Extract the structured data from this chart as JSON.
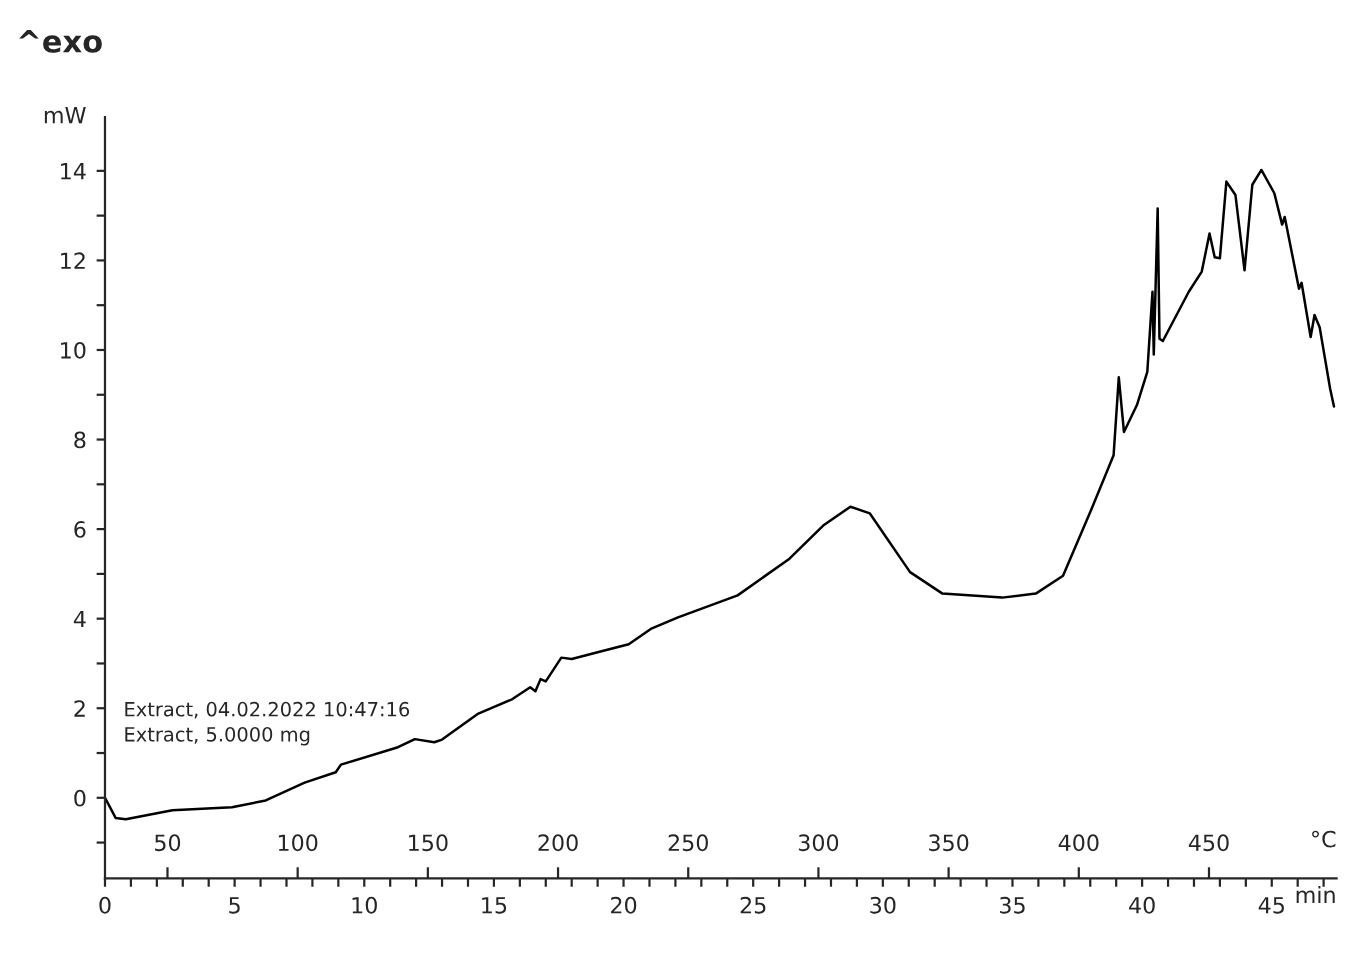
{
  "chart_data": {
    "type": "line",
    "title": "^exo",
    "xlabel": "min",
    "x2label": "°C",
    "ylabel": "mW",
    "annotations": [
      "Extract, 04.02.2022 10:47:16",
      "Extract, 5.0000 mg"
    ],
    "xlim": [
      0,
      47.5
    ],
    "x2lim": [
      26,
      499
    ],
    "ylim": [
      -1.8,
      15.2
    ],
    "xticks": [
      0,
      {
        "value": 1,
        "label": null
      },
      {
        "value": 2,
        "label": null
      },
      {
        "value": 3,
        "label": null
      },
      {
        "value": 4,
        "label": null
      },
      5,
      {
        "value": 6,
        "label": null
      },
      {
        "value": 7,
        "label": null
      },
      {
        "value": 8,
        "label": null
      },
      {
        "value": 9,
        "label": null
      },
      10,
      {
        "value": 11,
        "label": null
      },
      {
        "value": 12,
        "label": null
      },
      {
        "value": 13,
        "label": null
      },
      {
        "value": 14,
        "label": null
      },
      15,
      {
        "value": 16,
        "label": null
      },
      {
        "value": 17,
        "label": null
      },
      {
        "value": 18,
        "label": null
      },
      {
        "value": 19,
        "label": null
      },
      20,
      {
        "value": 21,
        "label": null
      },
      {
        "value": 22,
        "label": null
      },
      {
        "value": 23,
        "label": null
      },
      {
        "value": 24,
        "label": null
      },
      25,
      {
        "value": 26,
        "label": null
      },
      {
        "value": 27,
        "label": null
      },
      {
        "value": 28,
        "label": null
      },
      {
        "value": 29,
        "label": null
      },
      30,
      {
        "value": 31,
        "label": null
      },
      {
        "value": 32,
        "label": null
      },
      {
        "value": 33,
        "label": null
      },
      {
        "value": 34,
        "label": null
      },
      35,
      {
        "value": 36,
        "label": null
      },
      {
        "value": 37,
        "label": null
      },
      {
        "value": 38,
        "label": null
      },
      {
        "value": 39,
        "label": null
      },
      40,
      {
        "value": 41,
        "label": null
      },
      {
        "value": 42,
        "label": null
      },
      {
        "value": 43,
        "label": null
      },
      {
        "value": 44,
        "label": null
      },
      45,
      {
        "value": 46,
        "label": null
      },
      {
        "value": 47,
        "label": null
      }
    ],
    "x2ticks": [
      50,
      100,
      150,
      200,
      250,
      300,
      350,
      400,
      450
    ],
    "yticks": [
      {
        "value": -1,
        "label": null
      },
      0,
      {
        "value": 1,
        "label": null
      },
      2,
      {
        "value": 3,
        "label": null
      },
      4,
      {
        "value": 5,
        "label": null
      },
      6,
      {
        "value": 7,
        "label": null
      },
      8,
      {
        "value": 9,
        "label": null
      },
      10,
      {
        "value": 11,
        "label": null
      },
      12,
      {
        "value": 13,
        "label": null
      },
      14
    ],
    "grid": false,
    "legend": false,
    "marker": "none",
    "line_style": "solid",
    "series": [
      {
        "color": "#000000",
        "x": [
          0,
          0.41,
          0.8,
          2.6,
          4.9,
          6.2,
          7.7,
          8.9,
          9.1,
          11.3,
          11.95,
          12.7,
          13.0,
          14.4,
          15.7,
          16.4,
          16.6,
          16.8,
          17.0,
          17.6,
          18.0,
          19.0,
          20.2,
          21.05,
          22.1,
          24.4,
          26.4,
          27.7,
          28.75,
          29.5,
          31.05,
          32.3,
          34.6,
          35.9,
          36.95,
          38.0,
          38.9,
          39.1,
          39.3,
          39.8,
          40.2,
          40.4,
          40.45,
          40.6,
          40.67,
          40.8,
          41.8,
          42.3,
          42.6,
          42.8,
          43.0,
          43.25,
          43.6,
          43.95,
          44.25,
          44.6,
          45.1,
          45.4,
          45.5,
          46.05,
          46.15,
          46.5,
          46.65,
          46.85,
          47.25,
          47.4
        ],
        "values": [
          0,
          -0.45,
          -0.48,
          -0.28,
          -0.21,
          -0.06,
          0.34,
          0.57,
          0.74,
          1.13,
          1.31,
          1.24,
          1.3,
          1.88,
          2.2,
          2.47,
          2.38,
          2.65,
          2.6,
          3.13,
          3.1,
          3.25,
          3.43,
          3.77,
          4.03,
          4.52,
          5.34,
          6.08,
          6.5,
          6.35,
          5.04,
          4.56,
          4.47,
          4.56,
          4.96,
          6.38,
          7.65,
          9.39,
          8.17,
          8.77,
          9.51,
          11.3,
          9.9,
          13.16,
          10.25,
          10.2,
          11.3,
          11.75,
          12.6,
          12.07,
          12.05,
          13.76,
          13.46,
          11.78,
          13.69,
          14.02,
          13.5,
          12.8,
          12.97,
          11.37,
          11.5,
          10.29,
          10.78,
          10.5,
          9.14,
          8.74
        ]
      }
    ]
  }
}
